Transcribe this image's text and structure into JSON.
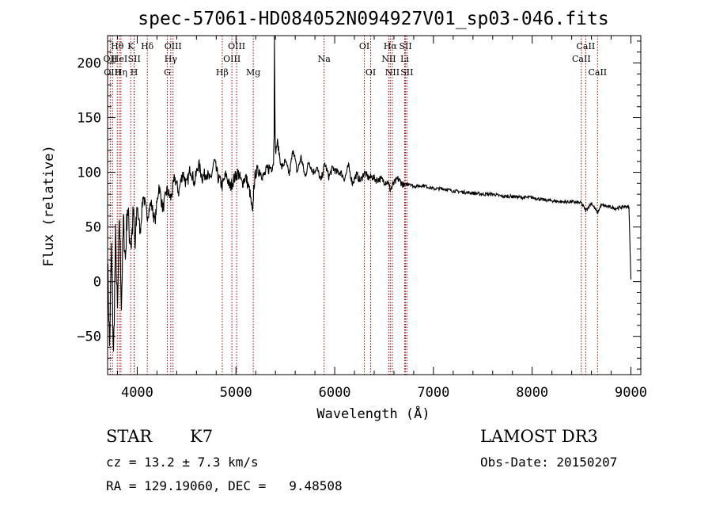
{
  "chart_data": {
    "type": "line",
    "title": "spec-57061-HD084052N094927V01_sp03-046.fits",
    "xlabel": "Wavelength (Å)",
    "ylabel": "Flux (relative)",
    "xlim": [
      3700,
      9100
    ],
    "ylim": [
      -85,
      225
    ],
    "xticks": [
      4000,
      5000,
      6000,
      7000,
      8000,
      9000
    ],
    "yticks": [
      -50,
      0,
      50,
      100,
      150,
      200
    ],
    "grid": false,
    "series": [
      {
        "name": "flux",
        "x": [
          3700,
          3720,
          3740,
          3760,
          3780,
          3800,
          3820,
          3840,
          3860,
          3880,
          3900,
          3920,
          3940,
          3960,
          3980,
          4000,
          4030,
          4060,
          4100,
          4140,
          4180,
          4220,
          4260,
          4300,
          4340,
          4380,
          4420,
          4460,
          4500,
          4540,
          4580,
          4620,
          4660,
          4700,
          4740,
          4780,
          4820,
          4860,
          4900,
          4940,
          4980,
          5020,
          5060,
          5100,
          5140,
          5170,
          5180,
          5200,
          5240,
          5280,
          5320,
          5360,
          5380,
          5390,
          5400,
          5420,
          5460,
          5500,
          5540,
          5580,
          5620,
          5660,
          5700,
          5740,
          5780,
          5820,
          5860,
          5900,
          5940,
          5980,
          6020,
          6060,
          6100,
          6140,
          6180,
          6220,
          6260,
          6300,
          6340,
          6380,
          6420,
          6460,
          6500,
          6540,
          6563,
          6600,
          6640,
          6700,
          6760,
          6800,
          6900,
          7000,
          7100,
          7200,
          7300,
          7400,
          7500,
          7600,
          7700,
          7800,
          7900,
          8000,
          8100,
          8200,
          8300,
          8400,
          8498,
          8542,
          8600,
          8662,
          8700,
          8750,
          8800,
          8850,
          8900,
          8950,
          8980,
          9000
        ],
        "values": [
          20,
          -60,
          30,
          -70,
          40,
          -30,
          60,
          -20,
          55,
          20,
          70,
          45,
          35,
          62,
          30,
          70,
          45,
          80,
          60,
          72,
          55,
          88,
          66,
          84,
          76,
          95,
          82,
          100,
          88,
          104,
          90,
          108,
          95,
          100,
          92,
          110,
          95,
          88,
          98,
          86,
          94,
          100,
          90,
          96,
          82,
          60,
          86,
          100,
          102,
          96,
          103,
          105,
          110,
          150,
          118,
          128,
          104,
          110,
          98,
          122,
          100,
          114,
          96,
          110,
          100,
          104,
          92,
          108,
          96,
          104,
          100,
          100,
          94,
          106,
          90,
          98,
          92,
          100,
          95,
          96,
          93,
          94,
          92,
          91,
          84,
          90,
          94,
          88,
          90,
          87,
          88,
          85,
          85,
          83,
          82,
          81,
          80,
          80,
          78,
          78,
          77,
          77,
          75,
          74,
          73,
          73,
          72,
          65,
          72,
          63,
          70,
          69,
          68,
          67,
          68,
          69,
          68,
          2
        ]
      }
    ],
    "spectral_lines": [
      {
        "label": "Hθ",
        "wavelength": 3798,
        "row": 1
      },
      {
        "label": "OII",
        "wavelength": 3727,
        "row": 2
      },
      {
        "label": "OIII",
        "wavelength": 3750,
        "row": 3
      },
      {
        "label": "HeI",
        "wavelength": 3820,
        "row": 2
      },
      {
        "label": "Hη",
        "wavelength": 3835,
        "row": 3
      },
      {
        "label": "K",
        "wavelength": 3934,
        "row": 1
      },
      {
        "label": "SII",
        "wavelength": 3970,
        "row": 2
      },
      {
        "label": "H",
        "wavelength": 3969,
        "row": 3
      },
      {
        "label": "Hδ",
        "wavelength": 4102,
        "row": 1
      },
      {
        "label": "OIII",
        "wavelength": 4363,
        "row": 1
      },
      {
        "label": "Hγ",
        "wavelength": 4340,
        "row": 2
      },
      {
        "label": "G",
        "wavelength": 4305,
        "row": 3
      },
      {
        "label": "OIII",
        "wavelength": 5007,
        "row": 1
      },
      {
        "label": "OIII",
        "wavelength": 4959,
        "row": 2
      },
      {
        "label": "Hβ",
        "wavelength": 4861,
        "row": 3
      },
      {
        "label": "Mg",
        "wavelength": 5175,
        "row": 3
      },
      {
        "label": "Na",
        "wavelength": 5893,
        "row": 2
      },
      {
        "label": "OI",
        "wavelength": 6300,
        "row": 1
      },
      {
        "label": "OI",
        "wavelength": 6364,
        "row": 3
      },
      {
        "label": "Hα",
        "wavelength": 6563,
        "row": 1
      },
      {
        "label": "NII",
        "wavelength": 6548,
        "row": 2
      },
      {
        "label": "NII",
        "wavelength": 6584,
        "row": 3
      },
      {
        "label": "SII",
        "wavelength": 6717,
        "row": 1
      },
      {
        "label": "Li",
        "wavelength": 6708,
        "row": 2
      },
      {
        "label": "SII",
        "wavelength": 6731,
        "row": 3
      },
      {
        "label": "CaII",
        "wavelength": 8542,
        "row": 1
      },
      {
        "label": "CaII",
        "wavelength": 8498,
        "row": 2
      },
      {
        "label": "CaII",
        "wavelength": 8662,
        "row": 3
      }
    ]
  },
  "info": {
    "object_type": "STAR",
    "subclass": "K7",
    "survey": "LAMOST DR3",
    "cz": "cz = 13.2 ± 7.3 km/s",
    "obs_date": "Obs-Date: 20150207",
    "coords": "RA = 129.19060, DEC =   9.48508"
  },
  "colors": {
    "line_marker": "#a00000",
    "spectrum": "#000000"
  }
}
